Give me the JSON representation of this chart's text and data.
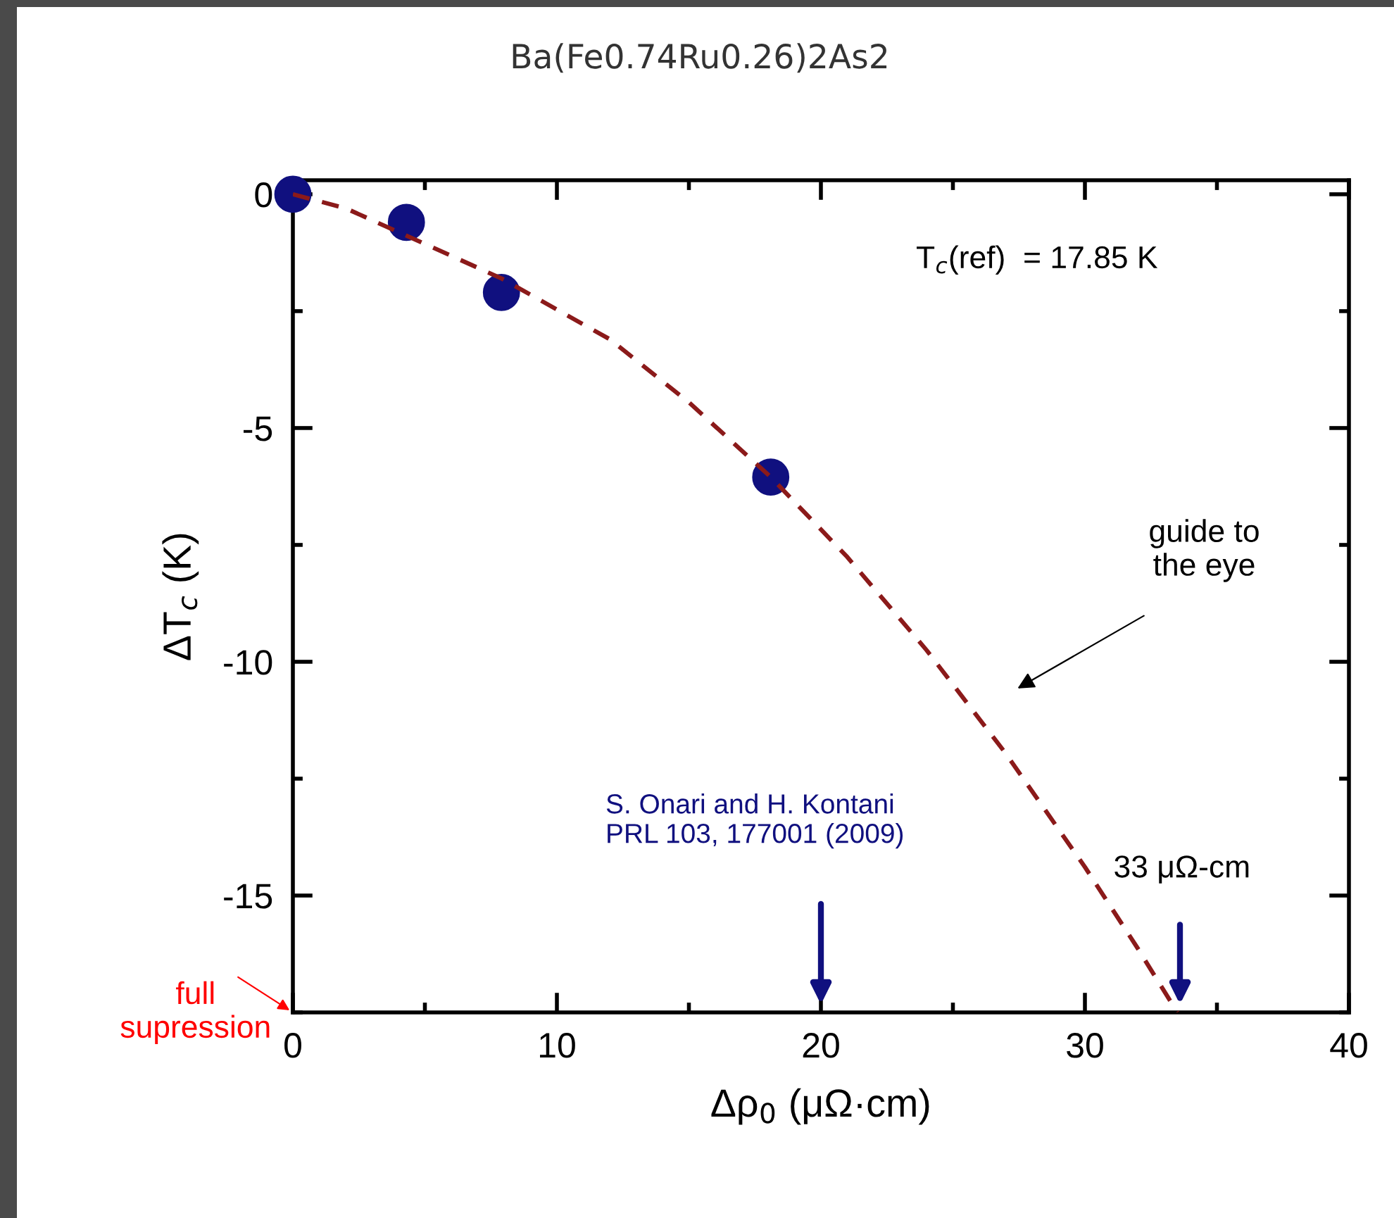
{
  "chart_data": {
    "type": "scatter",
    "title": "Ba(Fe0.74Ru0.26)2As2",
    "xlabel": "Δρ$_{0}$ (μΩ·cm)",
    "ylabel": "ΔT$_{c}$ (K)",
    "series": [
      {
        "color": "#10107f",
        "x": [
          0,
          4.3,
          7.9,
          18.1
        ],
        "values": [
          0,
          -0.6,
          -2.1,
          -6.05
        ],
        "marker": "circle"
      },
      {
        "type": "line",
        "color": "#8b1a1a",
        "line_style": "dashed",
        "marker": "none",
        "x": [
          0,
          2,
          7.9,
          12,
          15,
          18.1,
          21,
          24,
          27,
          30,
          32,
          33.5
        ],
        "values": [
          0,
          -0.3,
          -1.8,
          -3.1,
          -4.45,
          -6.05,
          -7.76,
          -9.75,
          -11.96,
          -14.39,
          -16.13,
          -17.5
        ]
      }
    ],
    "xlim": [
      0,
      40
    ],
    "ylim": [
      -17.5,
      0.3
    ],
    "xticks": [
      0,
      10,
      20,
      30,
      40
    ],
    "yticks": [
      0,
      -5,
      -10,
      -15
    ],
    "grid": false,
    "legend": false,
    "annotations": [
      "T$_{c}$(ref)  = 17.85 K",
      "guide to\nthe eye",
      "S. Onari and H. Kontani\nPRL 103, 177001 (2009)",
      "33 μΩ-cm",
      "full\nsupression"
    ]
  }
}
